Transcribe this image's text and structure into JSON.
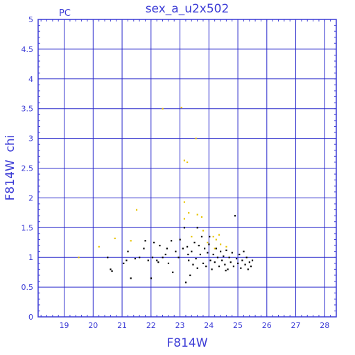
{
  "chart_data": {
    "type": "scatter",
    "title": "sex_a_u2x502",
    "corner_label": "PC",
    "xlabel": "F814W",
    "ylabel": "F814W  chi",
    "xlim": [
      18.1,
      28.4
    ],
    "ylim": [
      0,
      5
    ],
    "xticks": [
      19,
      20,
      21,
      22,
      23,
      24,
      25,
      26,
      27,
      28
    ],
    "yticks": [
      0,
      0.5,
      1,
      1.5,
      2,
      2.5,
      3,
      3.5,
      4,
      4.5,
      5
    ],
    "ytick_labels": [
      "0",
      "0.5",
      "1",
      "1.5",
      "2",
      "2.5",
      "3",
      "3.5",
      "4",
      "4.5",
      "5"
    ],
    "grid": true,
    "colors": {
      "frame": "#3b3bd6",
      "grid": "#2a2acc",
      "text": "#3b3bd6",
      "bright_stars": "#e8c400",
      "stars": "#000000"
    },
    "series": [
      {
        "color": "#e8c400",
        "points": [
          [
            19.5,
            1.0
          ],
          [
            20.2,
            1.18
          ],
          [
            20.75,
            1.32
          ],
          [
            21.3,
            1.28
          ],
          [
            21.5,
            1.8
          ],
          [
            22.4,
            3.5
          ],
          [
            23.05,
            3.52
          ],
          [
            23.15,
            2.63
          ],
          [
            23.25,
            2.6
          ],
          [
            23.15,
            1.93
          ],
          [
            23.15,
            1.65
          ],
          [
            23.3,
            1.75
          ],
          [
            23.55,
            3.0
          ],
          [
            23.6,
            1.72
          ],
          [
            23.75,
            1.68
          ],
          [
            23.8,
            1.45
          ],
          [
            23.4,
            1.35
          ],
          [
            24.15,
            1.35
          ],
          [
            24.25,
            1.3
          ],
          [
            24.35,
            1.38
          ],
          [
            24.4,
            1.22
          ],
          [
            24.6,
            1.18
          ],
          [
            24.2,
            1.15
          ],
          [
            23.95,
            1.25
          ]
        ]
      },
      {
        "color": "#000000",
        "points": [
          [
            20.5,
            1.0
          ],
          [
            20.6,
            0.8
          ],
          [
            20.65,
            0.77
          ],
          [
            21.05,
            0.9
          ],
          [
            21.15,
            0.95
          ],
          [
            21.2,
            1.1
          ],
          [
            21.3,
            0.65
          ],
          [
            21.45,
            0.98
          ],
          [
            21.6,
            1.0
          ],
          [
            21.8,
            1.28
          ],
          [
            21.9,
            0.95
          ],
          [
            22.0,
            0.65
          ],
          [
            22.05,
            1.0
          ],
          [
            22.1,
            1.25
          ],
          [
            22.2,
            0.95
          ],
          [
            22.3,
            1.2
          ],
          [
            22.4,
            1.0
          ],
          [
            22.5,
            1.05
          ],
          [
            22.6,
            0.9
          ],
          [
            22.7,
            1.28
          ],
          [
            22.75,
            0.75
          ],
          [
            22.85,
            1.1
          ],
          [
            22.95,
            1.0
          ],
          [
            23.0,
            1.3
          ],
          [
            23.1,
            1.15
          ],
          [
            23.15,
            1.5
          ],
          [
            23.2,
            0.58
          ],
          [
            23.25,
            1.18
          ],
          [
            23.3,
            0.95
          ],
          [
            23.35,
            0.7
          ],
          [
            23.4,
            1.1
          ],
          [
            23.45,
            0.88
          ],
          [
            23.5,
            1.25
          ],
          [
            23.55,
            0.98
          ],
          [
            23.6,
            1.5
          ],
          [
            23.65,
            1.2
          ],
          [
            23.7,
            1.05
          ],
          [
            23.75,
            1.35
          ],
          [
            23.8,
            0.9
          ],
          [
            23.85,
            1.15
          ],
          [
            23.9,
            0.85
          ],
          [
            23.95,
            1.08
          ],
          [
            24.0,
            1.22
          ],
          [
            24.05,
            0.95
          ],
          [
            24.1,
            0.8
          ],
          [
            24.15,
            1.05
          ],
          [
            24.2,
            0.92
          ],
          [
            24.25,
            1.15
          ],
          [
            24.3,
            1.0
          ],
          [
            24.35,
            0.85
          ],
          [
            24.4,
            1.1
          ],
          [
            24.45,
            0.95
          ],
          [
            24.5,
            1.02
          ],
          [
            24.55,
            0.88
          ],
          [
            24.6,
            1.12
          ],
          [
            24.65,
            0.8
          ],
          [
            24.7,
            1.0
          ],
          [
            24.75,
            0.92
          ],
          [
            24.8,
            1.08
          ],
          [
            24.85,
            0.85
          ],
          [
            24.9,
            1.7
          ],
          [
            24.95,
            0.98
          ],
          [
            25.0,
            0.9
          ],
          [
            25.05,
            1.05
          ],
          [
            25.1,
            0.82
          ],
          [
            25.15,
            0.95
          ],
          [
            25.2,
            1.1
          ],
          [
            25.25,
            0.88
          ],
          [
            25.3,
            1.0
          ],
          [
            25.35,
            0.8
          ],
          [
            25.4,
            0.92
          ],
          [
            25.45,
            0.85
          ],
          [
            25.5,
            0.95
          ],
          [
            21.75,
            1.15
          ],
          [
            22.25,
            0.92
          ],
          [
            22.55,
            1.15
          ],
          [
            23.28,
            1.05
          ],
          [
            23.6,
            0.82
          ],
          [
            24.02,
            1.35
          ],
          [
            24.58,
            0.78
          ]
        ]
      }
    ]
  }
}
